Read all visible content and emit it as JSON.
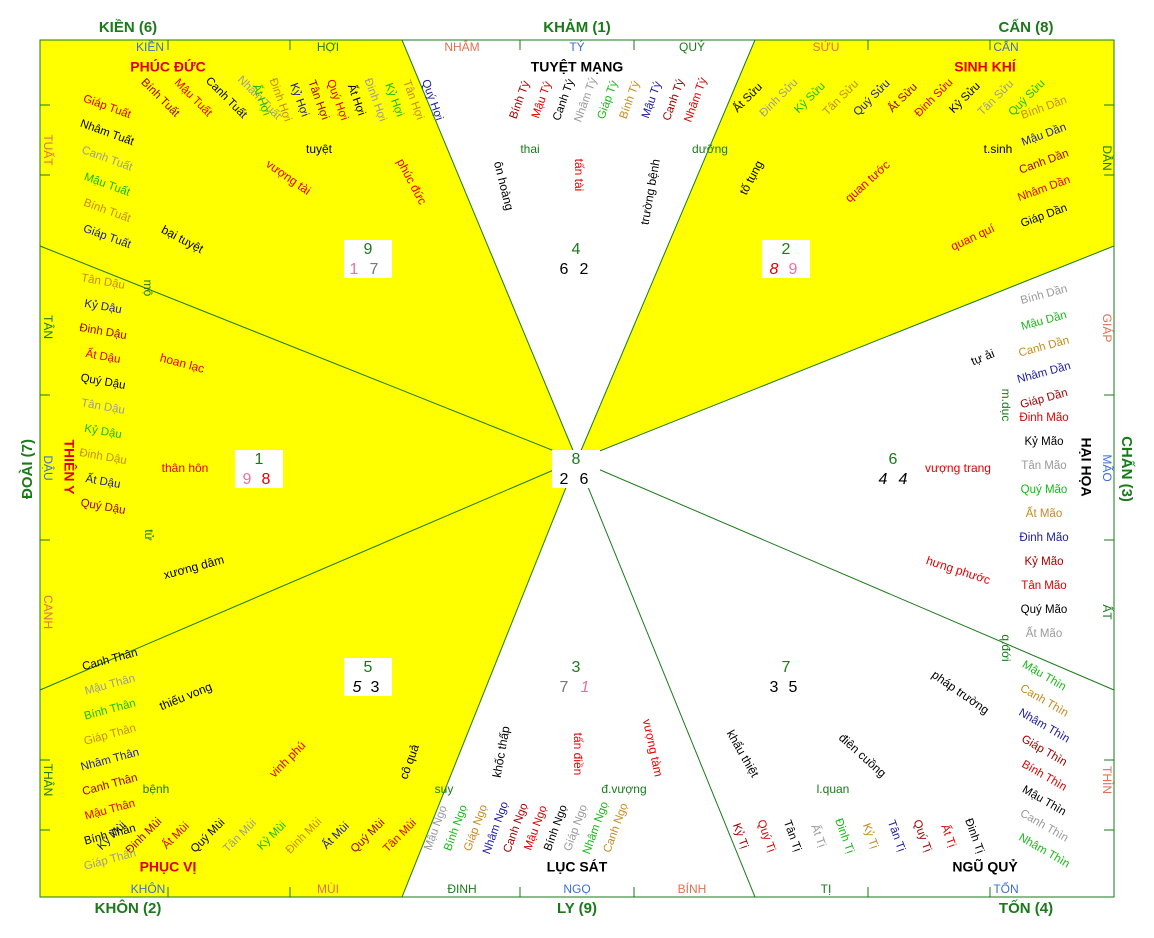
{
  "colors": {
    "yellow": "#ffff00",
    "green": "#1a7a1a",
    "red": "#e00000",
    "black": "#000000",
    "gray": "#9a9a9a",
    "orange": "#c58a20",
    "blue": "#3a6fd8",
    "navy": "#1a1aa0",
    "brightgreen": "#17b917",
    "darkred": "#a00000",
    "salmon": "#e07050",
    "pink": "#f070a0",
    "mid": "#787878"
  },
  "trigrams": [
    {
      "key": "kien",
      "label": "KIỀN (6)"
    },
    {
      "key": "kham",
      "label": "KHẢM (1)"
    },
    {
      "key": "can",
      "label": "CẤN (8)"
    },
    {
      "key": "doai",
      "label": "ĐOÀI (7)"
    },
    {
      "key": "chan",
      "label": "CHẤN (3)"
    },
    {
      "key": "khon",
      "label": "KHÔN (2)"
    },
    {
      "key": "ly",
      "label": "LY (9)"
    },
    {
      "key": "ton",
      "label": "TỐN (4)"
    }
  ],
  "directions": {
    "top": [
      "KIỀN",
      "HỢI",
      "NHÂM",
      "TÝ",
      "QUÝ",
      "SỬU",
      "CẤN"
    ],
    "right": [
      "DẦN",
      "GIÁP",
      "MÃO",
      "ẤT",
      "THÌN"
    ],
    "bottom": [
      "KHÔN",
      "MÙI",
      "ĐINH",
      "NGỌ",
      "BÍNH",
      "TỊ",
      "TỐN"
    ],
    "left": [
      "TUẤT",
      "TÂN",
      "DẬU",
      "CANH",
      "THÂN"
    ]
  },
  "stars": [
    {
      "key": "phuc-duc",
      "label": "PHÚC ĐỨC"
    },
    {
      "key": "tuyet-mang",
      "label": "TUYỆT MẠNG"
    },
    {
      "key": "sinh-khi",
      "label": "SINH KHÍ"
    },
    {
      "key": "thien-y",
      "label": "THIÊN Y"
    },
    {
      "key": "hai-hoa",
      "label": "HẠI HỌA"
    },
    {
      "key": "phuc-vi",
      "label": "PHỤC VỊ"
    },
    {
      "key": "luc-sat",
      "label": "LỤC SÁT"
    },
    {
      "key": "ngu-quy",
      "label": "NGŨ QUỶ"
    }
  ],
  "palaces": [
    {
      "key": "nw",
      "top": "9",
      "a": "1",
      "b": "7"
    },
    {
      "key": "n",
      "top": "4",
      "a": "6",
      "b": "2"
    },
    {
      "key": "ne",
      "top": "2",
      "a": "8",
      "b": "9"
    },
    {
      "key": "w",
      "top": "1",
      "a": "9",
      "b": "8"
    },
    {
      "key": "c",
      "top": "8",
      "a": "2",
      "b": "6"
    },
    {
      "key": "e",
      "top": "6",
      "a": "4",
      "b": "4"
    },
    {
      "key": "sw",
      "top": "5",
      "a": "5",
      "b": "3"
    },
    {
      "key": "s",
      "top": "3",
      "a": "7",
      "b": "1"
    },
    {
      "key": "se",
      "top": "7",
      "a": "3",
      "b": "5"
    }
  ],
  "subs": [
    "tuyệt",
    "thai",
    "dưỡng",
    "t.sinh",
    "m.dục",
    "q.đới",
    "l.quan",
    "đ.vượng",
    "suy",
    "bệnh",
    "tử",
    "mộ",
    "phúc đức",
    "vượng tài",
    "bại tuyệt",
    "ôn hoàng",
    "tấn tài",
    "trường bệnh",
    "tố tụng",
    "quan tước",
    "quan quí",
    "tự ải",
    "vượng trang",
    "hưng phước",
    "pháp trường",
    "điên cuồng",
    "khẩu thiệt",
    "vượng tàm",
    "tấn điền",
    "khốc thấp",
    "cô quả",
    "vinh phú",
    "thiếu vong",
    "xương dâm",
    "thân hôn",
    "hoan lạc"
  ],
  "ticks": [
    "Giáp Tuất",
    "Nhâm Tuất",
    "Canh Tuất",
    "Mậu Tuất",
    "Bính Tuất",
    "Giáp Tuất",
    "Bính Tuất",
    "Mậu Tuất",
    "Canh Tuất",
    "Nhâm Tuất",
    "Ất Hợi",
    "Đinh Hợi",
    "Kỷ Hợi",
    "Tân Hợi",
    "Quý Hợi",
    "Ất Hợi",
    "Đinh Hợi",
    "Kỷ Hợi",
    "Tân Hợi",
    "Quý Hợi",
    "Bính Tý",
    "Mậu Tý",
    "Canh Tý",
    "Nhâm Tý",
    "Giáp Tý",
    "Bính Tý",
    "Mậu Tý",
    "Canh Tý",
    "Nhâm Tý",
    "Ất Sửu",
    "Đinh Sửu",
    "Kỷ Sửu",
    "Tân Sửu",
    "Quý Sửu",
    "Ất Sửu",
    "Đinh Sửu",
    "Kỷ Sửu",
    "Tân Sửu",
    "Quý Sửu",
    "Bính Dần",
    "Mậu Dần",
    "Canh Dần",
    "Nhâm Dần",
    "Giáp Dần",
    "Bính Dần",
    "Mậu Dần",
    "Canh Dần",
    "Nhâm Dần",
    "Giáp Dần",
    "Đinh Mão",
    "Kỷ Mão",
    "Tân Mão",
    "Quý Mão",
    "Ất Mão",
    "Đinh Mão",
    "Kỷ Mão",
    "Tân Mão",
    "Quý Mão",
    "Ất Mão",
    "Mậu Thìn",
    "Canh Thìn",
    "Nhâm Thìn",
    "Giáp Thìn",
    "Bính Thìn",
    "Mậu Thìn",
    "Canh Thìn",
    "Nhâm Thìn",
    "Giáp Thìn",
    "Bính Thìn",
    "Kỷ Tị",
    "Quý Tị",
    "Tân Tị",
    "Ất Tị",
    "Đinh Tị",
    "Kỷ Tị",
    "Tân Tị",
    "Quý Tị",
    "Ất Tị",
    "Đinh Tị",
    "Mậu Ngọ",
    "Bính Ngọ",
    "Giáp Ngọ",
    "Nhâm Ngọ",
    "Canh Ngọ",
    "Mậu Ngọ",
    "Bính Ngọ",
    "Giáp Ngọ",
    "Nhâm Ngọ",
    "Canh Ngọ",
    "Kỷ Mùi",
    "Đinh Mùi",
    "Ất Mùi",
    "Quý Mùi",
    "Tân Mùi",
    "Kỷ Mùi",
    "Đinh Mùi",
    "Ất Mùi",
    "Quý Mùi",
    "Tân Mùi",
    "Canh Thân",
    "Mậu Thân",
    "Bính Thân",
    "Giáp Thân",
    "Nhâm Thân",
    "Canh Thân",
    "Mậu Thân",
    "Bính Thân",
    "Giáp Thân",
    "Nhâm Thân",
    "Tân Dậu",
    "Kỷ Dậu",
    "Đinh Dậu",
    "Ất Dậu",
    "Quý Dậu",
    "Tân Dậu",
    "Kỷ Dậu",
    "Đinh Dậu",
    "Ất Dậu",
    "Quý Dậu"
  ]
}
